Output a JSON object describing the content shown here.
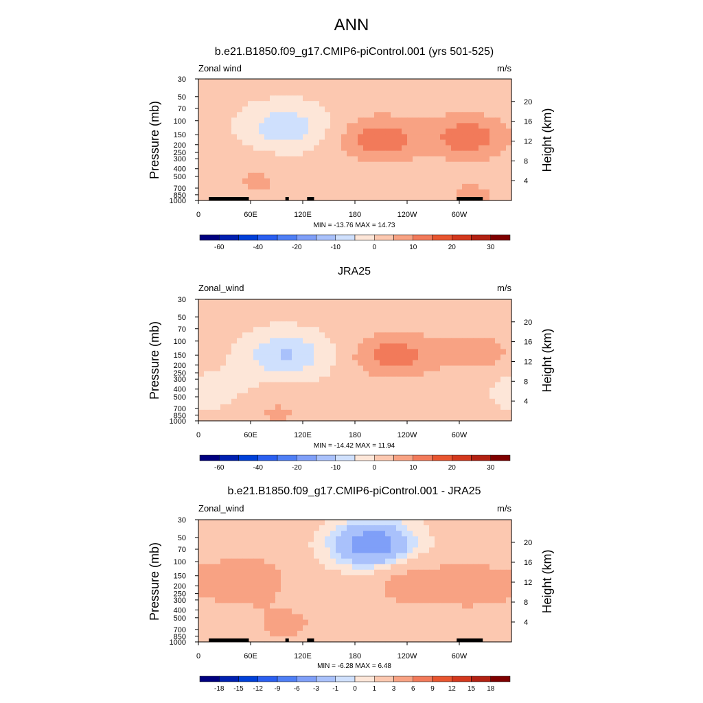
{
  "figure_title": "ANN",
  "chart_data": [
    {
      "type": "heatmap",
      "title": "b.e21.B1850.f09_g17.CMIP6-piControl.001 (yrs 501-525)",
      "field_label": "Zonal wind",
      "units": "m/s",
      "ylabel": "Pressure (mb)",
      "ylabel_right": "Height (km)",
      "xticks": [
        "0",
        "60E",
        "120E",
        "180",
        "120W",
        "60W"
      ],
      "yticks": [
        "30",
        "50",
        "70",
        "100",
        "150",
        "200",
        "250",
        "300",
        "400",
        "500",
        "700",
        "850",
        "1000"
      ],
      "yticks_right": [
        "20",
        "16",
        "12",
        "8",
        "4"
      ],
      "stats": "MIN = -13.76  MAX =  14.73",
      "colorbar_labels": [
        "-60",
        "-40",
        "-20",
        "-10",
        "0",
        "10",
        "20",
        "30"
      ],
      "colorbar_levels": [
        -70,
        -60,
        -50,
        -40,
        -30,
        -20,
        -15,
        -10,
        -5,
        0,
        5,
        10,
        15,
        20,
        25,
        30,
        35
      ],
      "blobs": [
        {
          "lon": 100,
          "p": 120,
          "value": -10
        },
        {
          "lon": 210,
          "p": 170,
          "value": 12
        },
        {
          "lon": 310,
          "p": 160,
          "value": 12
        },
        {
          "lon": 320,
          "p": 900,
          "value": 5
        },
        {
          "lon": 60,
          "p": 600,
          "value": 5
        },
        {
          "lon": 20,
          "p": 800,
          "value": -3
        }
      ],
      "min": -13.76,
      "max": 14.73
    },
    {
      "type": "heatmap",
      "title": "JRA25",
      "field_label": "Zonal_wind",
      "units": "m/s",
      "ylabel": "Pressure (mb)",
      "ylabel_right": "Height (km)",
      "xticks": [
        "0",
        "60E",
        "120E",
        "180",
        "120W",
        "60W"
      ],
      "yticks": [
        "30",
        "50",
        "70",
        "100",
        "150",
        "200",
        "250",
        "300",
        "400",
        "500",
        "700",
        "850",
        "1000"
      ],
      "yticks_right": [
        "20",
        "16",
        "12",
        "8",
        "4"
      ],
      "stats": "MIN = -14.42  MAX =  11.94",
      "colorbar_labels": [
        "-60",
        "-40",
        "-20",
        "-10",
        "0",
        "10",
        "20",
        "30"
      ],
      "colorbar_levels": [
        -70,
        -60,
        -50,
        -40,
        -30,
        -20,
        -15,
        -10,
        -5,
        0,
        5,
        10,
        15,
        20,
        25,
        30,
        35
      ],
      "blobs": [
        {
          "lon": 100,
          "p": 150,
          "value": -12
        },
        {
          "lon": 225,
          "p": 150,
          "value": 11
        },
        {
          "lon": 320,
          "p": 140,
          "value": 6
        },
        {
          "lon": 15,
          "p": 400,
          "value": -4
        },
        {
          "lon": 90,
          "p": 800,
          "value": 4
        }
      ],
      "min": -14.42,
      "max": 11.94
    },
    {
      "type": "heatmap",
      "title": "b.e21.B1850.f09_g17.CMIP6-piControl.001 - JRA25",
      "field_label": "Zonal_wind",
      "units": "m/s",
      "ylabel": "Pressure (mb)",
      "ylabel_right": "Height (km)",
      "xticks": [
        "0",
        "60E",
        "120E",
        "180",
        "120W",
        "60W"
      ],
      "yticks": [
        "30",
        "50",
        "70",
        "100",
        "150",
        "200",
        "250",
        "300",
        "400",
        "500",
        "700",
        "850",
        "1000"
      ],
      "yticks_right": [
        "20",
        "16",
        "12",
        "8",
        "4"
      ],
      "stats": "MIN = -6.28  MAX =  6.48",
      "colorbar_labels": [
        "-18",
        "-15",
        "-12",
        "-9",
        "-6",
        "-3",
        "-1",
        "0",
        "1",
        "3",
        "6",
        "9",
        "12",
        "15",
        "18"
      ],
      "colorbar_levels": [
        -21,
        -18,
        -15,
        -12,
        -9,
        -6,
        -3,
        -1,
        0,
        1,
        3,
        6,
        9,
        12,
        15,
        18,
        21
      ],
      "blobs": [
        {
          "lon": 200,
          "p": 60,
          "value": -6
        },
        {
          "lon": 50,
          "p": 170,
          "value": 4
        },
        {
          "lon": 250,
          "p": 200,
          "value": 3
        },
        {
          "lon": 320,
          "p": 200,
          "value": 3
        },
        {
          "lon": 100,
          "p": 600,
          "value": 2
        }
      ],
      "min": -6.28,
      "max": 6.48
    }
  ]
}
